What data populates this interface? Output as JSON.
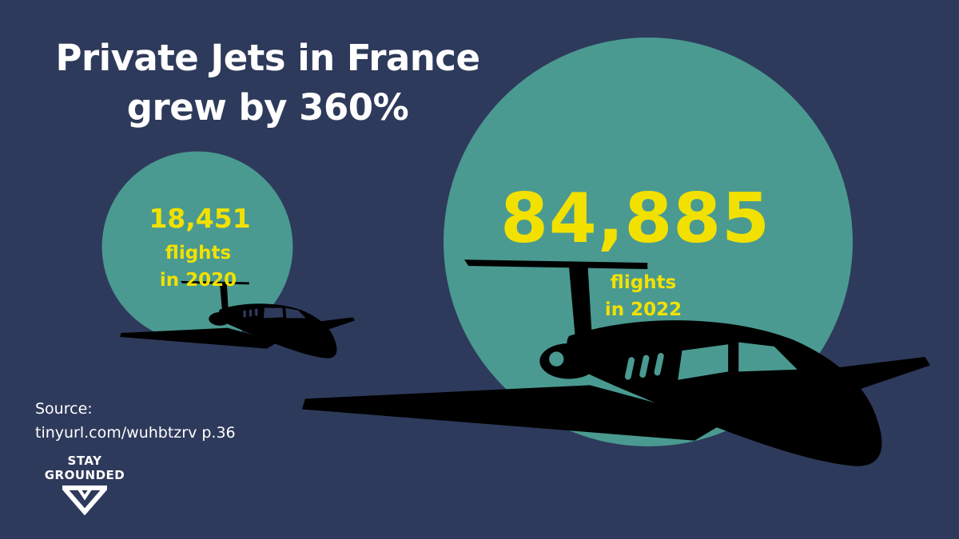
{
  "title": {
    "line1": "Private Jets in France",
    "line2": "grew by 360%"
  },
  "colors": {
    "background": "#2e3a5b",
    "circle": "#4a9a91",
    "highlight": "#f2e100",
    "text": "#ffffff",
    "silhouette": "#000000"
  },
  "chart_data": {
    "type": "proportional-area",
    "categories": [
      "2020",
      "2022"
    ],
    "values": [
      18451,
      84885
    ],
    "items": [
      {
        "value_label": "18,451",
        "caption_line1": "flights",
        "caption_line2": "in 2020",
        "icon": "private-jet-silhouette"
      },
      {
        "value_label": "84,885",
        "caption_line1": "flights",
        "caption_line2": "in 2022",
        "icon": "private-jet-silhouette"
      }
    ]
  },
  "source": {
    "label": "Source:",
    "link": "tinyurl.com/wuhbtzrv p.36"
  },
  "logo": {
    "line1": "STAY",
    "line2": "GROUNDED",
    "icon": "stay-grounded-chevron-icon"
  }
}
